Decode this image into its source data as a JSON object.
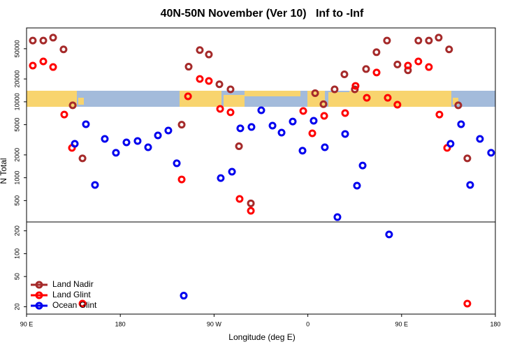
{
  "chart_data": {
    "type": "scatter",
    "title": "40N-50N November (Ver 10)   Inf to -Inf",
    "x_label": "Longitude (deg E)",
    "y_label": "N Total",
    "y_scale": "log",
    "legend": "bottom-left",
    "xlim": [
      90,
      540
    ],
    "xticks": [
      {
        "value": 90,
        "label": "90 E"
      },
      180,
      {
        "value": 270,
        "label": "90 W"
      },
      {
        "value": 360,
        "label": "0"
      },
      {
        "value": 450,
        "label": "90 E"
      },
      {
        "value": 540,
        "label": "180"
      }
    ],
    "ylim": [
      16,
      94000
    ],
    "yticks": [
      20,
      50,
      100,
      200,
      500,
      1000,
      2000,
      5000,
      10000,
      20000,
      50000
    ],
    "series": [
      {
        "name": "Land Nadir",
        "color": "#a52a2a",
        "x": [
          96,
          106.1,
          115.5,
          125.5,
          134.3,
          143.7,
          238.9,
          245.6,
          256.3,
          265,
          275.1,
          285.8,
          293.9,
          305.3,
          367,
          375,
          385.7,
          395.1,
          405.1,
          415.9,
          425.9,
          436,
          446,
          456.1,
          466.1,
          476.2,
          485.6,
          495.6,
          504.4,
          513.1
        ],
        "values": [
          64000,
          64000,
          70000,
          49000,
          9000,
          1800,
          5000,
          29000,
          48000,
          42000,
          17000,
          14600,
          2600,
          460,
          13000,
          9300,
          14600,
          23000,
          14600,
          27000,
          45000,
          64000,
          31000,
          26000,
          64000,
          64000,
          70000,
          49000,
          9000,
          1800
        ]
      },
      {
        "name": "Land Glint",
        "color": "#ff0000",
        "x": [
          96,
          106.1,
          115.5,
          126.2,
          133.6,
          143.7,
          238.9,
          245,
          256.3,
          265,
          275.8,
          285.8,
          294.5,
          305.3,
          355.6,
          364.3,
          375.7,
          395.8,
          405.8,
          416.6,
          426,
          436.7,
          446,
          456.1,
          466.1,
          476.2,
          486.3,
          493.7,
          513.1
        ],
        "values": [
          30000,
          34000,
          28700,
          6800,
          2470,
          22,
          950,
          11800,
          20000,
          18800,
          8070,
          7270,
          526,
          367,
          7570,
          3850,
          6530,
          7110,
          16200,
          11300,
          24300,
          11300,
          9160,
          30000,
          34000,
          28700,
          6800,
          2470,
          22
        ]
      },
      {
        "name": "Ocean Glint",
        "color": "#0000ee",
        "x": [
          136.3,
          147,
          155.7,
          165.1,
          175.8,
          185.9,
          196.6,
          206.7,
          216.1,
          226.1,
          234.2,
          240.9,
          276.4,
          287.2,
          295.2,
          305.9,
          315.3,
          326.1,
          334.8,
          345.5,
          354.9,
          365.6,
          376.3,
          388.4,
          395.8,
          407.2,
          412.6,
          438,
          497,
          507.1,
          515.8,
          525.2,
          535.9
        ],
        "values": [
          2800,
          5070,
          804,
          3250,
          2130,
          2920,
          3050,
          2520,
          3610,
          4190,
          1550,
          28,
          990,
          1200,
          4470,
          4660,
          7730,
          4850,
          3930,
          5500,
          2270,
          5630,
          2520,
          303,
          3770,
          787,
          1450,
          179,
          2800,
          5070,
          804,
          3250,
          2130
        ]
      }
    ]
  }
}
